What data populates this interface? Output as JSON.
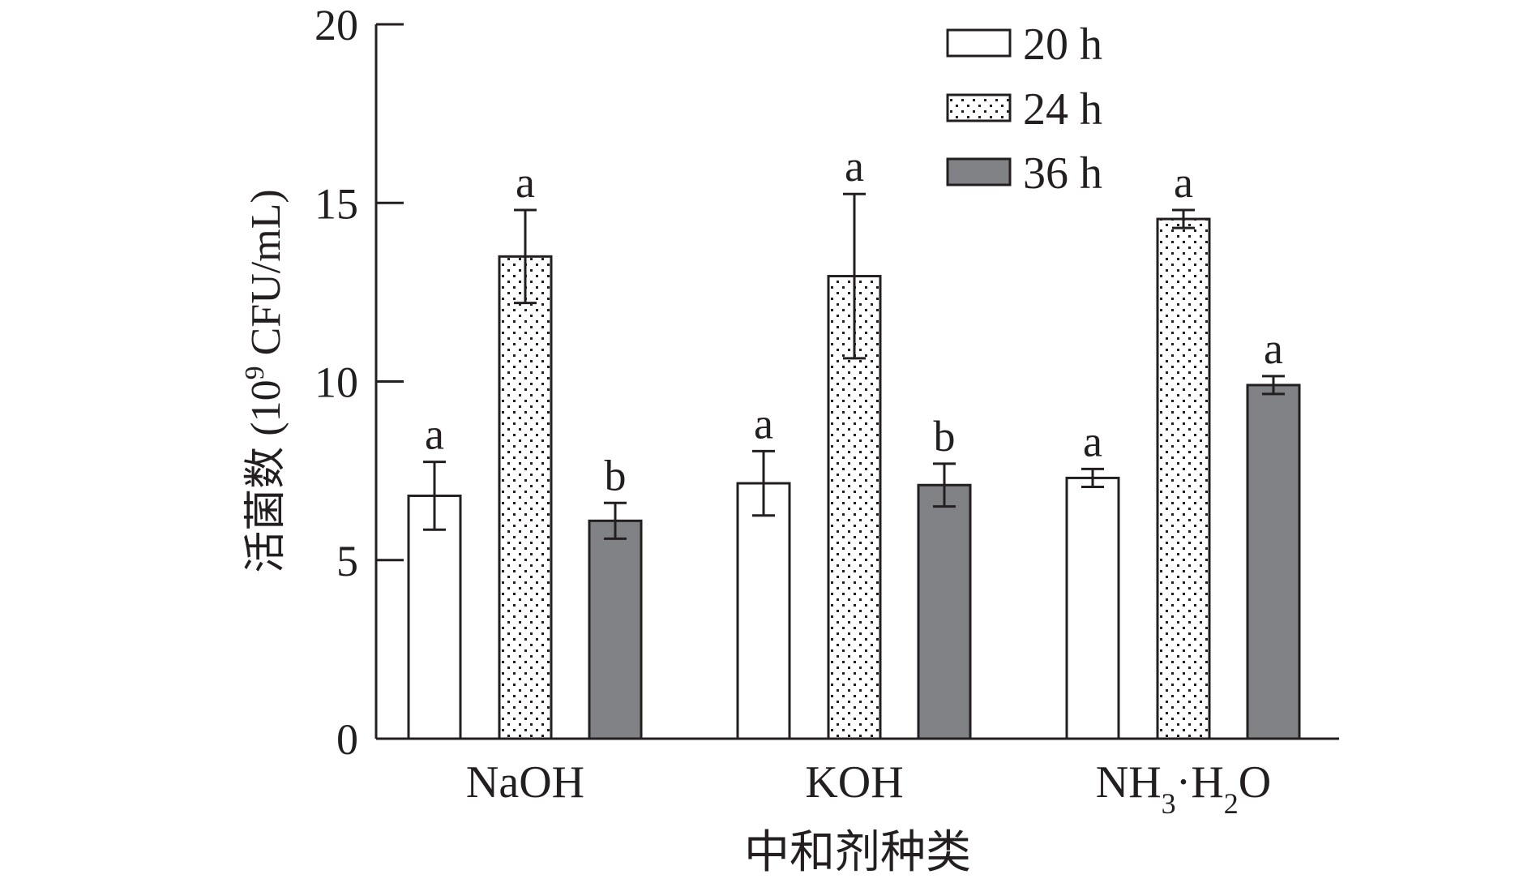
{
  "chart_data": {
    "type": "bar",
    "title": "",
    "xlabel": "中和剂种类",
    "ylabel_main": "活菌数 (10",
    "ylabel_sup": "9",
    "ylabel_tail": " CFU/mL)",
    "ylim": [
      0,
      20
    ],
    "yticks": [
      0,
      5,
      10,
      15,
      20
    ],
    "grid": false,
    "legend_position": "top-right",
    "categories": [
      {
        "name": "NaOH"
      },
      {
        "name": "KOH"
      },
      {
        "name": "NH3·H2O",
        "parts": [
          {
            "t": "NH",
            "s": 0
          },
          {
            "t": "3",
            "s": 1
          },
          {
            "t": "·H",
            "s": 0
          },
          {
            "t": "2",
            "s": 1
          },
          {
            "t": "O",
            "s": 0
          }
        ]
      }
    ],
    "series": [
      {
        "name": "20 h",
        "pattern": "white",
        "values": [
          6.8,
          7.15,
          7.3
        ],
        "errors": [
          0.95,
          0.9,
          0.25
        ],
        "labels": [
          "a",
          "a",
          "a"
        ]
      },
      {
        "name": "24 h",
        "pattern": "dots",
        "values": [
          13.5,
          12.95,
          14.55
        ],
        "errors": [
          1.3,
          2.3,
          0.25
        ],
        "labels": [
          "a",
          "a",
          "a"
        ]
      },
      {
        "name": "36 h",
        "pattern": "gray",
        "values": [
          6.1,
          7.1,
          9.9
        ],
        "errors": [
          0.5,
          0.6,
          0.25
        ],
        "labels": [
          "b",
          "b",
          "a"
        ]
      }
    ],
    "colors": {
      "axis": "#231f20",
      "gray_fill": "#808285",
      "white_fill": "#ffffff",
      "dot": "#231f20"
    }
  }
}
